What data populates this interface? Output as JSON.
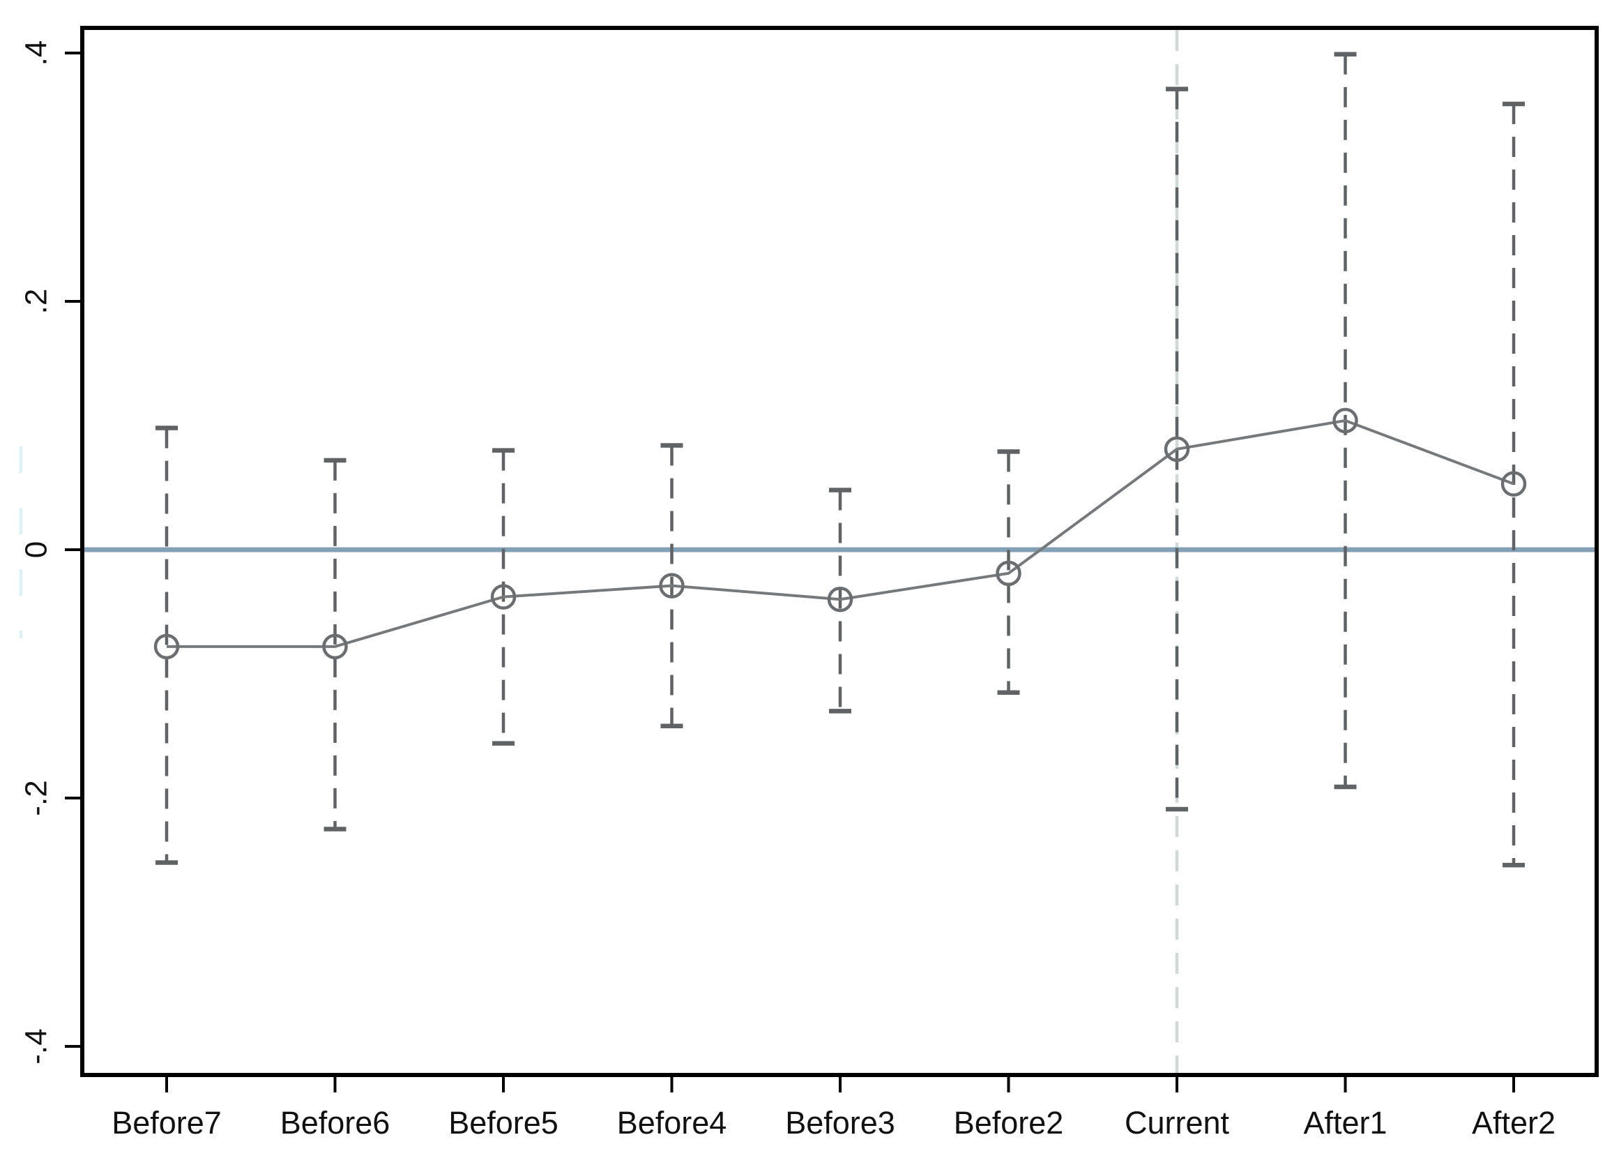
{
  "figure": {
    "kind": "stata-event-study-coefficient-plot",
    "background": "#ffffff"
  },
  "chart_data": {
    "type": "line",
    "title": "",
    "xlabel": "",
    "ylabel": "",
    "categories": [
      "Before7",
      "Before6",
      "Before5",
      "Before4",
      "Before3",
      "Before2",
      "Current",
      "After1",
      "After2"
    ],
    "series": [
      {
        "name": "point-estimate",
        "marker": "open-circle",
        "values": [
          -0.078,
          -0.078,
          -0.038,
          -0.029,
          -0.04,
          -0.019,
          0.081,
          0.104,
          0.053
        ],
        "ci_high": [
          0.098,
          0.072,
          0.08,
          0.084,
          0.048,
          0.079,
          0.371,
          0.399,
          0.359
        ],
        "ci_low": [
          -0.252,
          -0.225,
          -0.156,
          -0.142,
          -0.13,
          -0.115,
          -0.209,
          -0.191,
          -0.254
        ]
      }
    ],
    "y_ticks": [
      {
        "value": 0.4,
        "label": ".4"
      },
      {
        "value": 0.2,
        "label": ".2"
      },
      {
        "value": 0,
        "label": "0"
      },
      {
        "value": -0.2,
        "label": "-.2"
      },
      {
        "value": -0.4,
        "label": "-.4"
      }
    ],
    "ylim": [
      -0.42,
      0.42
    ],
    "grid": false,
    "legend_position": "none",
    "ci_style": "dashed-line-with-caps",
    "reference_lines": [
      {
        "type": "horizontal",
        "value": 0,
        "style": "solid",
        "color": "#84a0b4"
      },
      {
        "type": "vertical",
        "at_category": "Current",
        "style": "dashed",
        "color": "#ccdbd3"
      }
    ],
    "colors": {
      "estimate_line": "#76797c",
      "marker": "#6b6e71",
      "ci": "#5f6365",
      "axis": "#000000",
      "zero_line": "#84a0b4",
      "current_line": "#ccdbd3",
      "margin_artifact": "#b5ecf4"
    }
  }
}
